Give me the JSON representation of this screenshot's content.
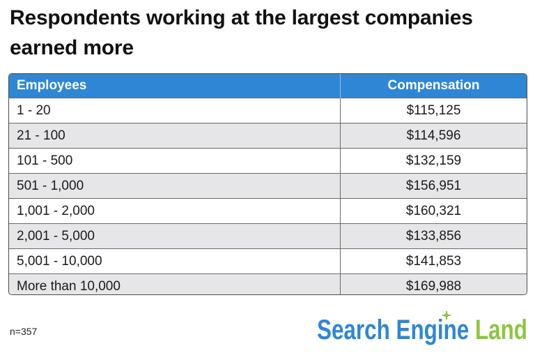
{
  "title": "Respondents working at the largest companies earned more",
  "footnote": "n=357",
  "brand": {
    "name": "Search Engine Land",
    "part1": "Search Engine",
    "part2": "Land",
    "color_blue": "#2f86d4",
    "color_green": "#8dc63f"
  },
  "colors": {
    "header_bg": "#2f86d4",
    "alt_row_bg": "#e6e6e8"
  },
  "chart_data": {
    "type": "table",
    "title": "Respondents working at the largest companies earned more",
    "columns": [
      "Employees",
      "Compensation"
    ],
    "rows": [
      [
        "1 - 20",
        "$115,125"
      ],
      [
        "21 - 100",
        "$114,596"
      ],
      [
        "101 - 500",
        "$132,159"
      ],
      [
        "501 - 1,000",
        "$156,951"
      ],
      [
        "1,001 - 2,000",
        "$160,321"
      ],
      [
        "2,001 - 5,000",
        "$133,856"
      ],
      [
        "5,001 - 10,000",
        "$141,853"
      ],
      [
        "More than 10,000",
        "$169,988"
      ]
    ]
  }
}
